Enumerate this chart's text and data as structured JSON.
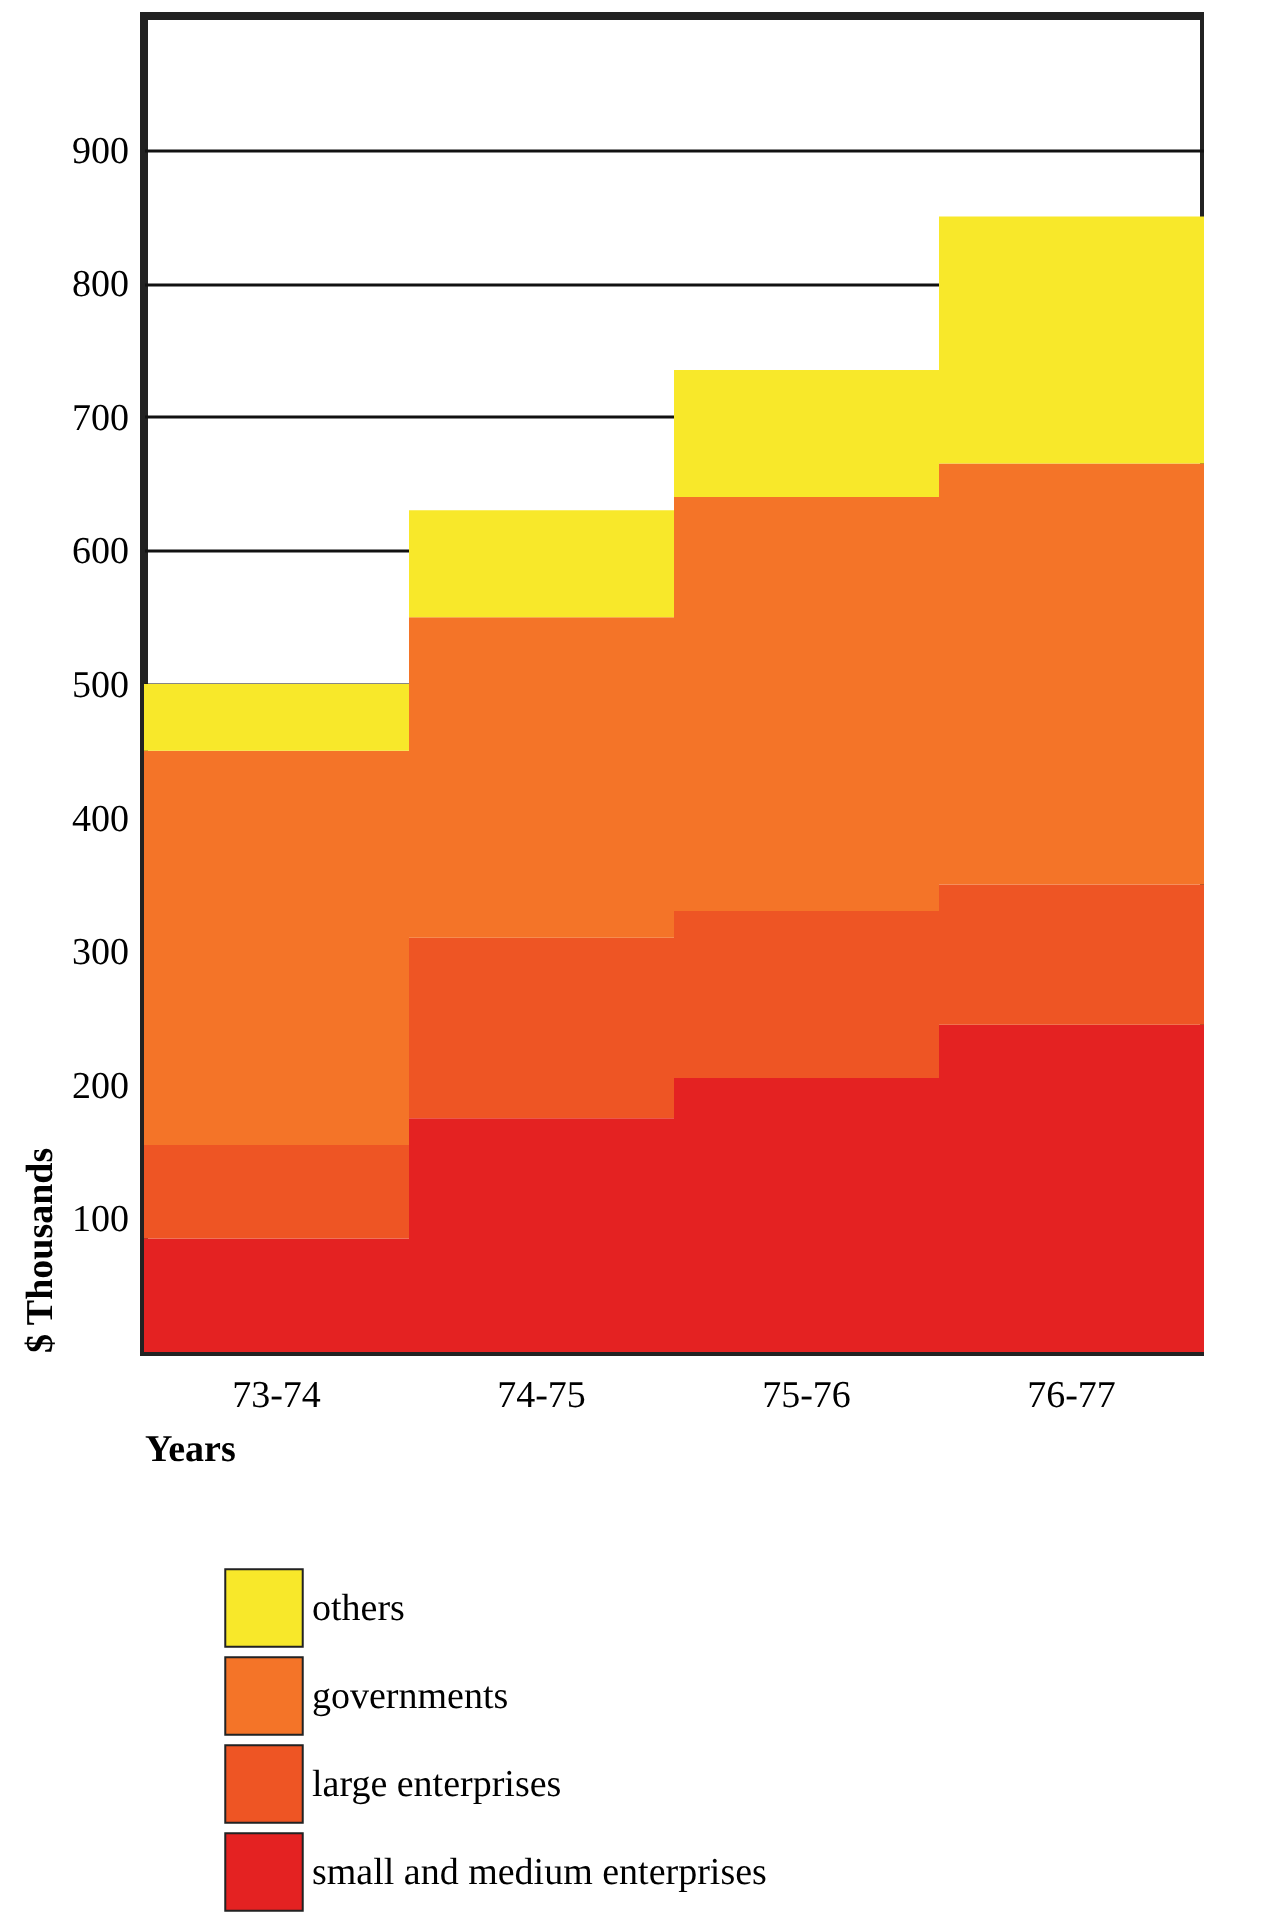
{
  "chart_data": {
    "type": "bar",
    "stacked": true,
    "xlabel": "Years",
    "ylabel": "$ Thousands",
    "categories": [
      "73-74",
      "74-75",
      "75-76",
      "76-77"
    ],
    "series": [
      {
        "name": "small and medium enterprises",
        "color": "#e42222",
        "values": [
          85,
          175,
          205,
          245
        ]
      },
      {
        "name": "large enterprises",
        "color": "#ee5524",
        "values": [
          70,
          135,
          125,
          105
        ]
      },
      {
        "name": "governments",
        "color": "#f47428",
        "values": [
          295,
          240,
          310,
          315
        ]
      },
      {
        "name": "others",
        "color": "#f8e82a",
        "values": [
          50,
          80,
          95,
          185
        ]
      }
    ],
    "ylim": [
      0,
      1000
    ],
    "yticks": [
      100,
      200,
      300,
      400,
      500,
      600,
      700,
      800,
      900
    ],
    "grid": "y",
    "legend": "bottom"
  }
}
